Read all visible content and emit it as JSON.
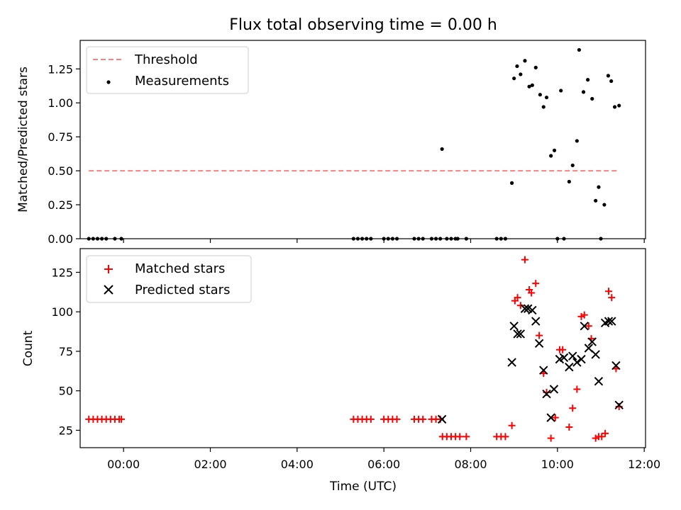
{
  "title": "Flux total observing time = 0.00 h",
  "colors": {
    "threshold": "#ff7f7f",
    "measurements": "#000000",
    "matched": "#ff0000",
    "predicted": "#000000"
  },
  "chart_data": [
    {
      "type": "scatter",
      "title": "Flux total observing time = 0.00 h",
      "xlabel": "",
      "ylabel": "Matched/Predicted stars",
      "xlim": [
        -1.0,
        12.03
      ],
      "ylim": [
        0,
        1.46
      ],
      "x_ticks": [
        "00:00",
        "02:00",
        "04:00",
        "06:00",
        "08:00",
        "10:00",
        "12:00"
      ],
      "y_ticks": [
        "0.00",
        "0.25",
        "0.50",
        "0.75",
        "1.00",
        "1.25"
      ],
      "legend": {
        "position": "upper-left",
        "entries": [
          "Threshold",
          "Measurements"
        ]
      },
      "threshold": {
        "name": "Threshold",
        "y": 0.5,
        "x_range": [
          -0.8,
          11.4
        ],
        "style": "dashed"
      },
      "series": [
        {
          "name": "Measurements",
          "points": [
            [
              -0.8,
              0
            ],
            [
              -0.7,
              0
            ],
            [
              -0.6,
              0
            ],
            [
              -0.5,
              0
            ],
            [
              -0.4,
              0
            ],
            [
              -0.2,
              0
            ],
            [
              -0.05,
              0
            ],
            [
              5.3,
              0
            ],
            [
              5.4,
              0
            ],
            [
              5.5,
              0
            ],
            [
              5.6,
              0
            ],
            [
              5.7,
              0
            ],
            [
              6.0,
              0
            ],
            [
              6.1,
              0
            ],
            [
              6.2,
              0
            ],
            [
              6.3,
              0
            ],
            [
              6.7,
              0
            ],
            [
              6.8,
              0
            ],
            [
              6.9,
              0
            ],
            [
              7.1,
              0
            ],
            [
              7.2,
              0
            ],
            [
              7.3,
              0
            ],
            [
              7.34,
              0.66
            ],
            [
              7.45,
              0
            ],
            [
              7.55,
              0
            ],
            [
              7.65,
              0
            ],
            [
              7.7,
              0
            ],
            [
              7.9,
              0
            ],
            [
              8.6,
              0
            ],
            [
              8.7,
              0
            ],
            [
              8.8,
              0
            ],
            [
              8.95,
              0.41
            ],
            [
              9.0,
              1.18
            ],
            [
              9.07,
              1.27
            ],
            [
              9.15,
              1.21
            ],
            [
              9.25,
              1.31
            ],
            [
              9.35,
              1.12
            ],
            [
              9.42,
              1.13
            ],
            [
              9.5,
              1.26
            ],
            [
              9.6,
              1.06
            ],
            [
              9.68,
              0.97
            ],
            [
              9.75,
              1.04
            ],
            [
              9.85,
              0.61
            ],
            [
              9.93,
              0.65
            ],
            [
              10.0,
              0
            ],
            [
              10.08,
              1.09
            ],
            [
              10.15,
              0
            ],
            [
              10.27,
              0.42
            ],
            [
              10.35,
              0.54
            ],
            [
              10.45,
              0.72
            ],
            [
              10.5,
              1.39
            ],
            [
              10.6,
              1.08
            ],
            [
              10.7,
              1.17
            ],
            [
              10.8,
              1.03
            ],
            [
              10.88,
              0.28
            ],
            [
              10.95,
              0.38
            ],
            [
              11.0,
              0
            ],
            [
              11.08,
              0.25
            ],
            [
              11.17,
              1.2
            ],
            [
              11.24,
              1.16
            ],
            [
              11.32,
              0.97
            ],
            [
              11.42,
              0.98
            ]
          ]
        }
      ]
    },
    {
      "type": "scatter",
      "title": "",
      "xlabel": "Time (UTC)",
      "ylabel": "Count",
      "xlim": [
        -1.0,
        12.03
      ],
      "ylim": [
        14,
        140
      ],
      "x_ticks": [
        "00:00",
        "02:00",
        "04:00",
        "06:00",
        "08:00",
        "10:00",
        "12:00"
      ],
      "y_ticks": [
        "25",
        "50",
        "75",
        "100",
        "125"
      ],
      "legend": {
        "position": "upper-left",
        "entries": [
          "Matched stars",
          "Predicted stars"
        ]
      },
      "series": [
        {
          "name": "Matched stars",
          "marker": "plus",
          "points": [
            [
              -0.8,
              32
            ],
            [
              -0.7,
              32
            ],
            [
              -0.6,
              32
            ],
            [
              -0.5,
              32
            ],
            [
              -0.4,
              32
            ],
            [
              -0.3,
              32
            ],
            [
              -0.2,
              32
            ],
            [
              -0.1,
              32
            ],
            [
              -0.05,
              32
            ],
            [
              5.3,
              32
            ],
            [
              5.4,
              32
            ],
            [
              5.5,
              32
            ],
            [
              5.6,
              32
            ],
            [
              5.7,
              32
            ],
            [
              6.0,
              32
            ],
            [
              6.1,
              32
            ],
            [
              6.2,
              32
            ],
            [
              6.3,
              32
            ],
            [
              6.7,
              32
            ],
            [
              6.8,
              32
            ],
            [
              6.9,
              32
            ],
            [
              7.1,
              32
            ],
            [
              7.2,
              32
            ],
            [
              7.3,
              32
            ],
            [
              7.35,
              21
            ],
            [
              7.45,
              21
            ],
            [
              7.55,
              21
            ],
            [
              7.65,
              21
            ],
            [
              7.75,
              21
            ],
            [
              7.9,
              21
            ],
            [
              8.6,
              21
            ],
            [
              8.7,
              21
            ],
            [
              8.8,
              21
            ],
            [
              8.95,
              28
            ],
            [
              9.02,
              107
            ],
            [
              9.08,
              109
            ],
            [
              9.15,
              104
            ],
            [
              9.25,
              133
            ],
            [
              9.35,
              114
            ],
            [
              9.4,
              112
            ],
            [
              9.5,
              118
            ],
            [
              9.58,
              85
            ],
            [
              9.68,
              61
            ],
            [
              9.75,
              49
            ],
            [
              9.85,
              20
            ],
            [
              9.95,
              33
            ],
            [
              10.05,
              76
            ],
            [
              10.12,
              76
            ],
            [
              10.27,
              27
            ],
            [
              10.35,
              39
            ],
            [
              10.45,
              51
            ],
            [
              10.55,
              97
            ],
            [
              10.62,
              98
            ],
            [
              10.72,
              91
            ],
            [
              10.78,
              83
            ],
            [
              10.88,
              20
            ],
            [
              10.95,
              21
            ],
            [
              11.02,
              21
            ],
            [
              11.1,
              23
            ],
            [
              11.18,
              113
            ],
            [
              11.25,
              109
            ],
            [
              11.35,
              64
            ],
            [
              11.42,
              40
            ]
          ]
        },
        {
          "name": "Predicted stars",
          "marker": "x",
          "points": [
            [
              7.34,
              32
            ],
            [
              8.95,
              68
            ],
            [
              9.0,
              91
            ],
            [
              9.08,
              86
            ],
            [
              9.15,
              86
            ],
            [
              9.25,
              102
            ],
            [
              9.32,
              102
            ],
            [
              9.42,
              101
            ],
            [
              9.5,
              94
            ],
            [
              9.58,
              80
            ],
            [
              9.68,
              63
            ],
            [
              9.75,
              48
            ],
            [
              9.85,
              33
            ],
            [
              9.92,
              51
            ],
            [
              10.05,
              70
            ],
            [
              10.15,
              71
            ],
            [
              10.27,
              65
            ],
            [
              10.35,
              72
            ],
            [
              10.45,
              68
            ],
            [
              10.55,
              70
            ],
            [
              10.62,
              91
            ],
            [
              10.72,
              77
            ],
            [
              10.8,
              81
            ],
            [
              10.88,
              73
            ],
            [
              10.95,
              56
            ],
            [
              11.1,
              93
            ],
            [
              11.18,
              94
            ],
            [
              11.25,
              94
            ],
            [
              11.35,
              66
            ],
            [
              11.42,
              41
            ]
          ]
        }
      ]
    }
  ]
}
